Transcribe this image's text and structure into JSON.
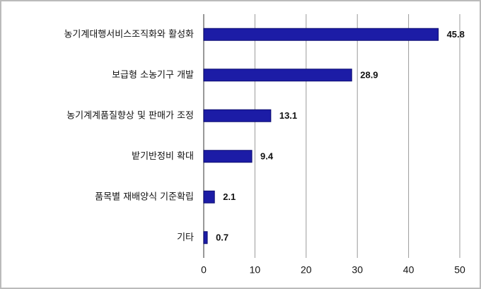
{
  "chart_data": {
    "type": "bar",
    "orientation": "horizontal",
    "categories": [
      "농기계대행서비스조직화와 활성화",
      "보급형 소농기구 개발",
      "농기계계품질향상 및 판매가 조정",
      "밭기반정비 확대",
      "품목별 재배양식 기준확립",
      "기타"
    ],
    "values": [
      45.8,
      28.9,
      13.1,
      9.4,
      2.1,
      0.7
    ],
    "color": "#1c1ca6",
    "xlim": [
      0,
      50
    ],
    "xticks": [
      0,
      10,
      20,
      30,
      40,
      50
    ],
    "grid": true
  }
}
